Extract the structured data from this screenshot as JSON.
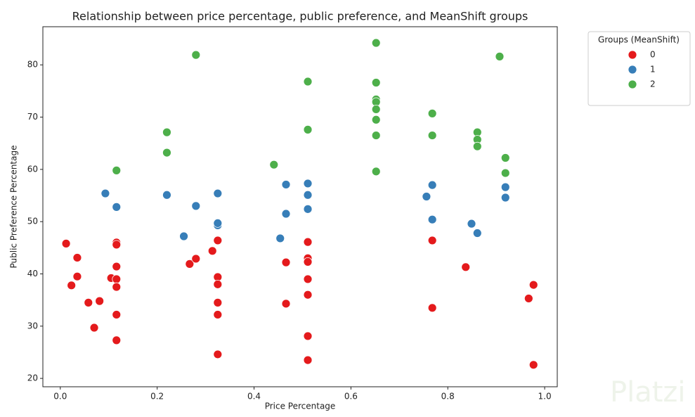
{
  "chart_data": {
    "type": "scatter",
    "title": "Relationship between price percentage, public preference, and MeanShift groups",
    "x_label": "Price Percentage",
    "y_label": "Public Preference Percentage",
    "legend_title": "Groups (MeanShift)",
    "legend_position": "outside-upper-right",
    "watermark": "Platzi",
    "xlim": [
      -0.036,
      1.026
    ],
    "ylim": [
      18.4,
      87.3
    ],
    "xticks": [
      {
        "value": 0,
        "label": "0.0"
      },
      {
        "value": 0.2,
        "label": "0.2"
      },
      {
        "value": 0.4,
        "label": "0.4"
      },
      {
        "value": 0.6,
        "label": "0.6"
      },
      {
        "value": 0.8,
        "label": "0.8"
      },
      {
        "value": 1,
        "label": "1.0"
      }
    ],
    "yticks": [
      20,
      30,
      40,
      50,
      60,
      70,
      80
    ],
    "series": [
      {
        "name": "0",
        "color": "#e41a1c",
        "x": [
          0.012,
          0.035,
          0.035,
          0.023,
          0.058,
          0.081,
          0.07,
          0.105,
          0.116,
          0.116,
          0.116,
          0.116,
          0.116,
          0.116,
          0.116,
          0.267,
          0.28,
          0.314,
          0.325,
          0.325,
          0.325,
          0.325,
          0.325,
          0.325,
          0.466,
          0.466,
          0.511,
          0.511,
          0.511,
          0.511,
          0.511,
          0.511,
          0.511,
          0.768,
          0.768,
          0.837,
          0.967,
          0.977,
          0.977
        ],
        "values": [
          45.8,
          43.1,
          39.5,
          37.8,
          34.5,
          34.8,
          29.7,
          39.2,
          46.0,
          45.6,
          41.4,
          39.0,
          37.5,
          32.2,
          27.3,
          41.9,
          42.9,
          44.4,
          46.4,
          39.4,
          38.0,
          34.5,
          32.2,
          24.6,
          42.2,
          34.3,
          46.1,
          43.0,
          42.3,
          39.0,
          36.0,
          28.1,
          23.5,
          46.4,
          33.5,
          41.3,
          35.3,
          37.9,
          22.6
        ]
      },
      {
        "name": "1",
        "color": "#377eb8",
        "x": [
          0.093,
          0.116,
          0.22,
          0.255,
          0.28,
          0.325,
          0.325,
          0.325,
          0.454,
          0.466,
          0.466,
          0.511,
          0.511,
          0.511,
          0.756,
          0.768,
          0.768,
          0.849,
          0.861,
          0.919,
          0.919
        ],
        "values": [
          55.4,
          52.8,
          55.1,
          47.2,
          53.0,
          55.4,
          49.3,
          49.7,
          46.8,
          57.1,
          51.5,
          57.3,
          55.1,
          52.4,
          54.8,
          57.0,
          50.4,
          49.6,
          47.8,
          56.6,
          54.6
        ]
      },
      {
        "name": "2",
        "color": "#4daf4a",
        "x": [
          0.116,
          0.22,
          0.22,
          0.28,
          0.441,
          0.511,
          0.511,
          0.652,
          0.652,
          0.652,
          0.652,
          0.652,
          0.652,
          0.652,
          0.652,
          0.768,
          0.768,
          0.861,
          0.861,
          0.861,
          0.907,
          0.919,
          0.919
        ],
        "values": [
          59.8,
          67.1,
          63.2,
          81.9,
          60.9,
          76.8,
          67.6,
          84.2,
          76.6,
          73.4,
          72.9,
          71.5,
          69.5,
          66.5,
          59.6,
          70.7,
          66.5,
          67.1,
          65.7,
          64.4,
          81.6,
          62.2,
          59.3
        ]
      }
    ]
  }
}
